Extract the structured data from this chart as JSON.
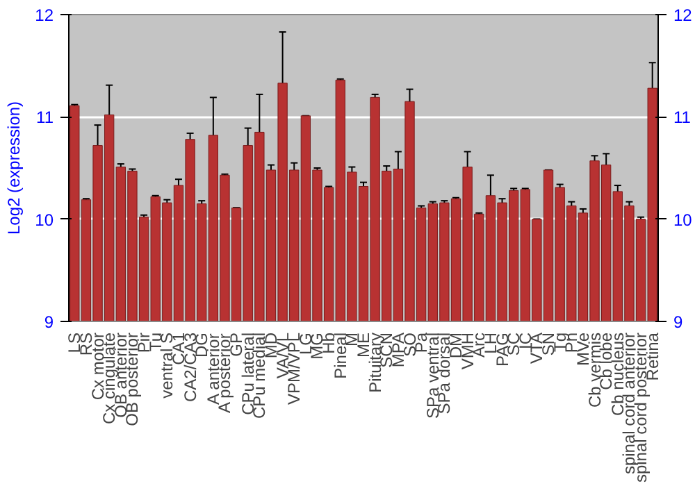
{
  "chart_data": {
    "type": "bar",
    "ylabel": "Log2 (expression)",
    "categories": [
      "LS",
      "RS",
      "Cx motor",
      "Cx cingulate",
      "OB anterior",
      "OB posterior",
      "Pir",
      "Tu",
      "ventral S",
      "CA1",
      "CA2/CA3",
      "DG",
      "A anterior",
      "A posterior",
      "GP",
      "CPu lateral",
      "CPu medial",
      "MD",
      "VA/VL",
      "VPM/VPL",
      "LG",
      "MG",
      "Hb",
      "Pineal",
      "M",
      "ME",
      "Pituitary",
      "SCN",
      "MPA",
      "SO",
      "Pa",
      "SPa ventral",
      "SPa dorsal",
      "DM",
      "VMH",
      "Arc",
      "LH",
      "PAG",
      "SC",
      "IC",
      "VTA",
      "SN",
      "Tg",
      "Pn",
      "MVe",
      "Cb vermis",
      "Cb lobe",
      "Cb nucleus",
      "spinal cord anterior",
      "spinal cord posterior",
      "Retina"
    ],
    "values": [
      11.11,
      10.19,
      10.72,
      11.02,
      10.51,
      10.47,
      10.02,
      10.22,
      10.16,
      10.33,
      10.78,
      10.15,
      10.82,
      10.43,
      10.11,
      10.72,
      10.85,
      10.48,
      11.33,
      10.48,
      11.01,
      10.48,
      10.31,
      11.36,
      10.46,
      10.32,
      11.19,
      10.47,
      10.49,
      11.15,
      10.11,
      10.15,
      10.16,
      10.2,
      10.51,
      10.05,
      10.23,
      10.16,
      10.28,
      10.29,
      10.0,
      10.48,
      10.31,
      10.13,
      10.06,
      10.57,
      10.53,
      10.27,
      10.13,
      10.0,
      11.28
    ],
    "errors": [
      0.01,
      0.01,
      0.2,
      0.29,
      0.03,
      0.02,
      0.02,
      0.01,
      0.03,
      0.06,
      0.06,
      0.03,
      0.37,
      0.01,
      0.0,
      0.17,
      0.37,
      0.05,
      0.5,
      0.07,
      0.0,
      0.02,
      0.01,
      0.01,
      0.05,
      0.04,
      0.03,
      0.05,
      0.17,
      0.12,
      0.02,
      0.02,
      0.02,
      0.01,
      0.15,
      0.01,
      0.2,
      0.04,
      0.02,
      0.01,
      0.0,
      0.0,
      0.03,
      0.04,
      0.04,
      0.05,
      0.11,
      0.06,
      0.04,
      0.02,
      0.25
    ],
    "color": "#b83232",
    "ylim": [
      9,
      12
    ],
    "yticks": [
      9,
      10,
      11,
      12
    ],
    "y2lim": [
      9,
      12
    ],
    "y2ticks": [
      9,
      10,
      11,
      12
    ],
    "grid": "y"
  }
}
